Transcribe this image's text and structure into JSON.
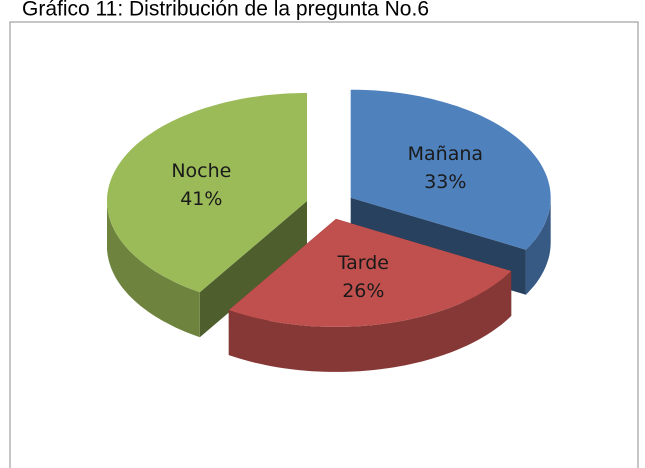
{
  "chart_data": {
    "type": "pie3d",
    "title": "Gráfico 11: Distribución de la pregunta No.6",
    "categories": [
      "Mañana",
      "Tarde",
      "Noche"
    ],
    "values": [
      33,
      26,
      41
    ],
    "value_labels": [
      "33%",
      "26%",
      "41%"
    ],
    "colors": [
      "#4f81bd",
      "#c0504d",
      "#9bbb59"
    ],
    "exploded": true
  }
}
